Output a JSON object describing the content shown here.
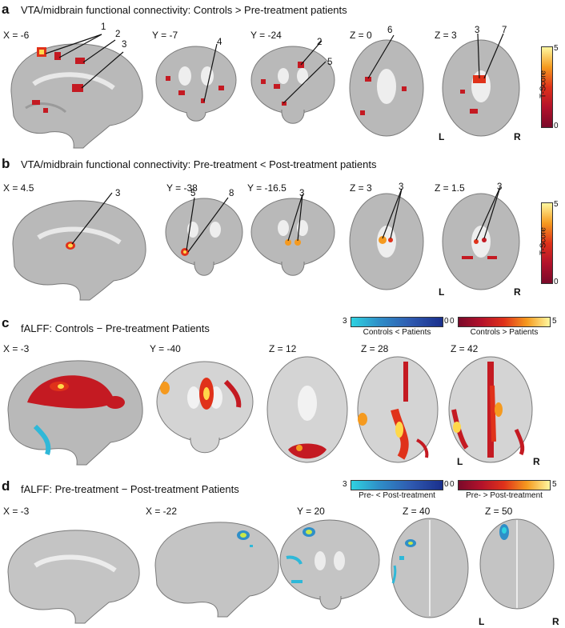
{
  "panels": {
    "a": {
      "letter": "a",
      "title": "VTA/midbrain functional connectivity: Controls > Pre-treatment patients",
      "coords": [
        "X = -6",
        "Y = -7",
        "Y = -24",
        "Z = 0",
        "Z = 3"
      ],
      "labels": [
        "1",
        "2",
        "3",
        "4",
        "2",
        "5",
        "6",
        "3",
        "7"
      ],
      "colorbar": {
        "title": "T-Score",
        "max": "5",
        "min": "0"
      },
      "sides": [
        "L",
        "R"
      ]
    },
    "b": {
      "letter": "b",
      "title": "VTA/midbrain functional connectivity: Pre-treatment < Post-treatment patients",
      "coords": [
        "X = 4.5",
        "Y = -38",
        "Y = -16.5",
        "Z = 3",
        "Z = 1.5"
      ],
      "labels": [
        "3",
        "5",
        "8",
        "3",
        "3",
        "3"
      ],
      "colorbar": {
        "title": "T-Score",
        "max": "5",
        "min": "0"
      },
      "sides": [
        "L",
        "R"
      ]
    },
    "c": {
      "letter": "c",
      "title": "fALFF: Controls − Pre-treatment Patients",
      "coords": [
        "X = -3",
        "Y = -40",
        "Z = 12",
        "Z = 28",
        "Z = 42"
      ],
      "bars": {
        "left_min": "3",
        "left_max": "0",
        "right_min": "0",
        "right_max": "5",
        "left_label": "Controls < Patients",
        "right_label": "Controls > Patients"
      },
      "sides": [
        "L",
        "R"
      ]
    },
    "d": {
      "letter": "d",
      "title": "fALFF: Pre-treatment  − Post-treatment Patients",
      "coords": [
        "X = -3",
        "X = -22",
        "Y = 20",
        "Z = 40",
        "Z = 50"
      ],
      "bars": {
        "left_min": "3",
        "left_max": "0",
        "right_min": "0",
        "right_max": "5",
        "left_label": "Pre- < Post-treatment",
        "right_label": "Pre- > Post-treatment"
      },
      "sides": [
        "L",
        "R"
      ]
    }
  }
}
